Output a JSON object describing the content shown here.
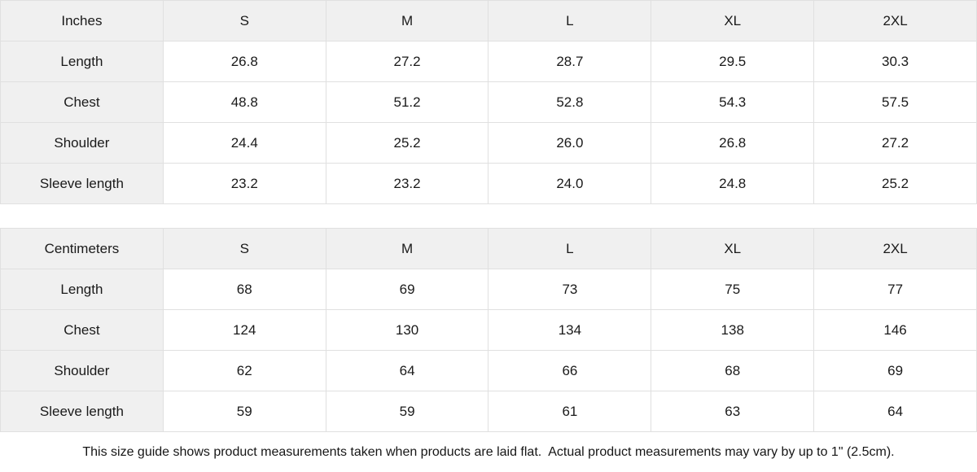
{
  "colors": {
    "header_bg": "#f0f0f0",
    "cell_bg": "#ffffff",
    "border": "#e0e0e0",
    "text": "#1a1a1a"
  },
  "chart_data": [
    {
      "type": "table",
      "unit": "Inches",
      "sizes": [
        "S",
        "M",
        "L",
        "XL",
        "2XL"
      ],
      "rows": [
        {
          "label": "Length",
          "values": [
            "26.8",
            "27.2",
            "28.7",
            "29.5",
            "30.3"
          ]
        },
        {
          "label": "Chest",
          "values": [
            "48.8",
            "51.2",
            "52.8",
            "54.3",
            "57.5"
          ]
        },
        {
          "label": "Shoulder",
          "values": [
            "24.4",
            "25.2",
            "26.0",
            "26.8",
            "27.2"
          ]
        },
        {
          "label": "Sleeve length",
          "values": [
            "23.2",
            "23.2",
            "24.0",
            "24.8",
            "25.2"
          ]
        }
      ]
    },
    {
      "type": "table",
      "unit": "Centimeters",
      "sizes": [
        "S",
        "M",
        "L",
        "XL",
        "2XL"
      ],
      "rows": [
        {
          "label": "Length",
          "values": [
            "68",
            "69",
            "73",
            "75",
            "77"
          ]
        },
        {
          "label": "Chest",
          "values": [
            "124",
            "130",
            "134",
            "138",
            "146"
          ]
        },
        {
          "label": "Shoulder",
          "values": [
            "62",
            "64",
            "66",
            "68",
            "69"
          ]
        },
        {
          "label": "Sleeve length",
          "values": [
            "59",
            "59",
            "61",
            "63",
            "64"
          ]
        }
      ]
    }
  ],
  "footer_note": "This size guide shows product measurements taken when products are laid flat.  Actual product measurements may vary by up to 1\" (2.5cm)."
}
